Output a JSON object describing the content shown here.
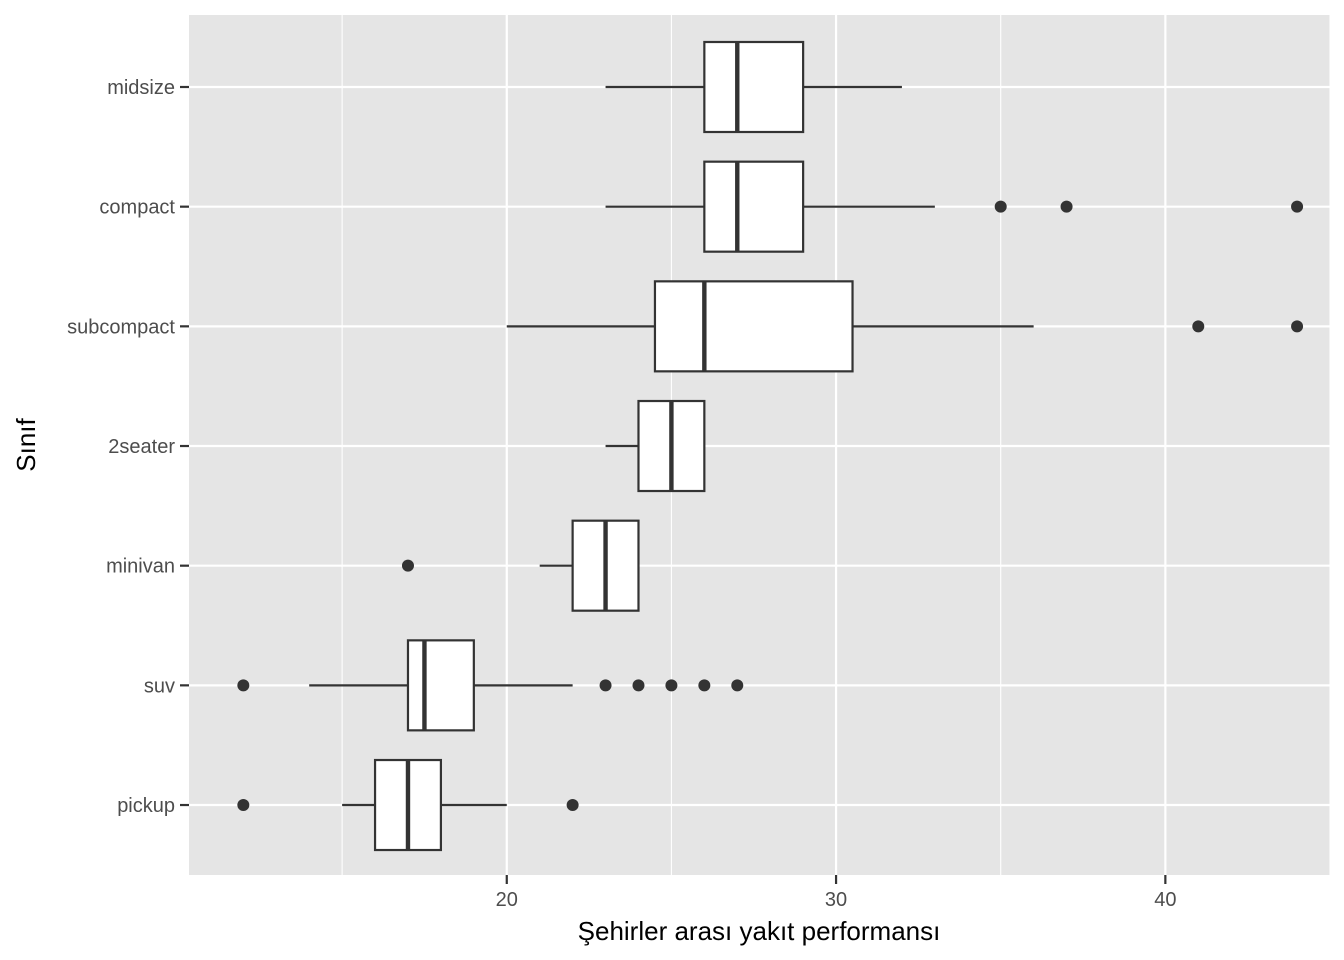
{
  "chart_data": {
    "type": "boxplot",
    "orientation": "horizontal",
    "xlabel": "Şehirler arası yakıt performansı",
    "ylabel": "Sınıf",
    "xlim": [
      10.35,
      45.0
    ],
    "x_ticks": [
      20,
      30,
      40
    ],
    "x_tick_labels": [
      "20",
      "30",
      "40"
    ],
    "grid": true,
    "categories": [
      "midsize",
      "compact",
      "subcompact",
      "2seater",
      "minivan",
      "suv",
      "pickup"
    ],
    "boxes": [
      {
        "category": "midsize",
        "whisker_low": 23,
        "q1": 26,
        "median": 27,
        "q3": 29,
        "whisker_high": 32,
        "outliers": []
      },
      {
        "category": "compact",
        "whisker_low": 23,
        "q1": 26,
        "median": 27,
        "q3": 29,
        "whisker_high": 33,
        "outliers": [
          35,
          37,
          44
        ]
      },
      {
        "category": "subcompact",
        "whisker_low": 20,
        "q1": 24.5,
        "median": 26,
        "q3": 30.5,
        "whisker_high": 36,
        "outliers": [
          41,
          44
        ]
      },
      {
        "category": "2seater",
        "whisker_low": 23,
        "q1": 24,
        "median": 25,
        "q3": 26,
        "whisker_high": 26,
        "outliers": []
      },
      {
        "category": "minivan",
        "whisker_low": 21,
        "q1": 22,
        "median": 23,
        "q3": 24,
        "whisker_high": 24,
        "outliers": [
          17
        ]
      },
      {
        "category": "suv",
        "whisker_low": 14,
        "q1": 17,
        "median": 17.5,
        "q3": 19,
        "whisker_high": 22,
        "outliers": [
          12,
          23,
          24,
          25,
          26,
          27
        ]
      },
      {
        "category": "pickup",
        "whisker_low": 15,
        "q1": 16,
        "median": 17,
        "q3": 18,
        "whisker_high": 20,
        "outliers": [
          12,
          22
        ]
      }
    ],
    "colors": {
      "panel": "#e5e5e5",
      "grid": "#ffffff",
      "box_fill": "#ffffff",
      "box_line": "#333333",
      "point": "#333333",
      "tick_text": "#4d4d4d",
      "title_text": "#000000"
    }
  }
}
